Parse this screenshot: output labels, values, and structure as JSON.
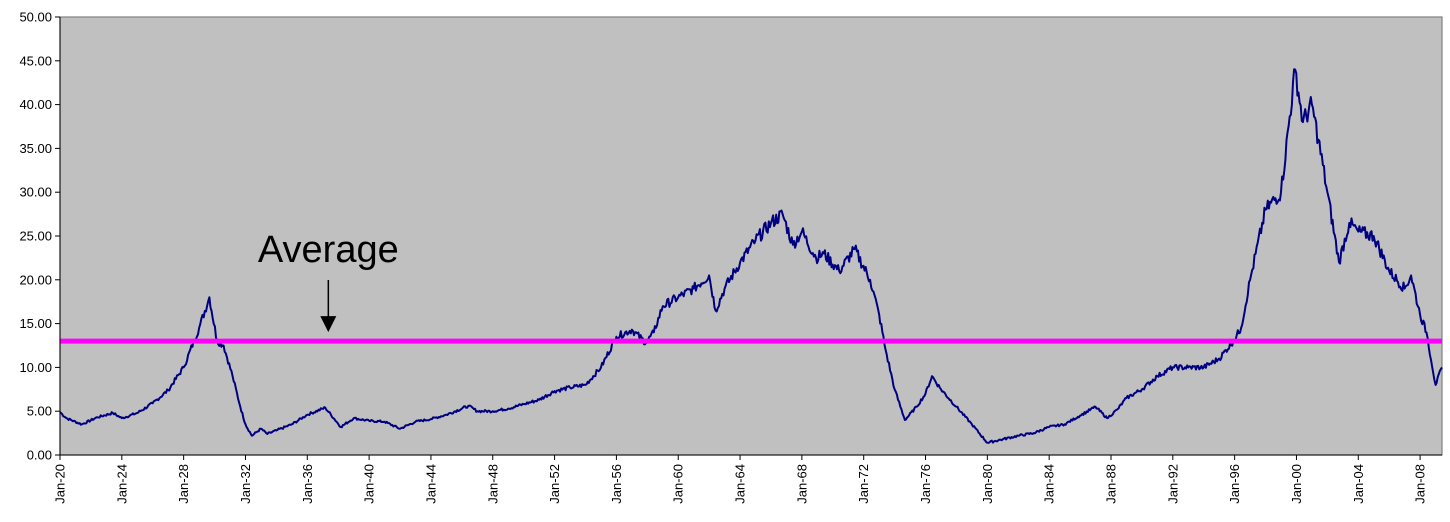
{
  "chart_data": {
    "type": "line",
    "title": "",
    "xlabel": "",
    "ylabel": "",
    "ylim": [
      0,
      50
    ],
    "yticks": [
      "0.00",
      "5.00",
      "10.00",
      "15.00",
      "20.00",
      "25.00",
      "30.00",
      "35.00",
      "40.00",
      "45.00",
      "50.00"
    ],
    "xticks": [
      "Jan-20",
      "Jan-24",
      "Jan-28",
      "Jan-32",
      "Jan-36",
      "Jan-40",
      "Jan-44",
      "Jan-48",
      "Jan-52",
      "Jan-56",
      "Jan-60",
      "Jan-64",
      "Jan-68",
      "Jan-72",
      "Jan-76",
      "Jan-80",
      "Jan-84",
      "Jan-88",
      "Jan-92",
      "Jan-96",
      "Jan-00",
      "Jan-04",
      "Jan-08"
    ],
    "xlim": [
      "1920-01",
      "2009-06"
    ],
    "grid": false,
    "legend": "none",
    "plot_background": "#c0c0c0",
    "series": [
      {
        "color": "#000080",
        "x": [
          "1920-01",
          "1920-06",
          "1921-06",
          "1922-06",
          "1923-06",
          "1924-01",
          "1925-01",
          "1926-01",
          "1927-01",
          "1928-01",
          "1929-01",
          "1929-09",
          "1930-03",
          "1930-08",
          "1931-03",
          "1931-09",
          "1932-01",
          "1932-06",
          "1933-01",
          "1933-06",
          "1934-01",
          "1935-01",
          "1936-01",
          "1937-03",
          "1938-03",
          "1939-01",
          "1940-01",
          "1941-01",
          "1942-01",
          "1943-01",
          "1944-01",
          "1945-01",
          "1946-06",
          "1947-01",
          "1948-01",
          "1949-01",
          "1950-01",
          "1951-01",
          "1952-01",
          "1953-01",
          "1954-01",
          "1955-01",
          "1956-01",
          "1957-01",
          "1957-12",
          "1958-06",
          "1959-01",
          "1960-01",
          "1961-01",
          "1962-01",
          "1962-06",
          "1963-01",
          "1964-01",
          "1965-01",
          "1966-01",
          "1966-10",
          "1967-06",
          "1968-01",
          "1968-12",
          "1969-06",
          "1970-06",
          "1971-06",
          "1972-06",
          "1973-01",
          "1973-06",
          "1974-01",
          "1974-09",
          "1975-06",
          "1976-01",
          "1976-06",
          "1977-01",
          "1978-01",
          "1979-01",
          "1980-01",
          "1981-01",
          "1982-01",
          "1983-01",
          "1984-01",
          "1985-01",
          "1986-01",
          "1987-01",
          "1987-10",
          "1988-06",
          "1989-01",
          "1990-01",
          "1991-01",
          "1992-01",
          "1993-01",
          "1994-01",
          "1995-01",
          "1995-12",
          "1996-06",
          "1997-01",
          "1998-01",
          "1999-01",
          "1999-12",
          "2000-06",
          "2001-01",
          "2001-06",
          "2002-01",
          "2002-10",
          "2003-06",
          "2004-01",
          "2005-01",
          "2006-01",
          "2007-01",
          "2007-06",
          "2008-01",
          "2008-06",
          "2009-01",
          "2009-06"
        ],
        "values": [
          4.9,
          4.2,
          3.5,
          4.3,
          4.8,
          4.2,
          4.8,
          5.9,
          7.4,
          10.0,
          14.5,
          18.0,
          13.0,
          12.5,
          9.0,
          5.5,
          3.5,
          2.2,
          3.0,
          2.4,
          2.8,
          3.5,
          4.6,
          5.4,
          3.2,
          4.2,
          3.9,
          3.8,
          3.0,
          3.8,
          4.1,
          4.6,
          5.6,
          5.0,
          5.0,
          5.3,
          5.8,
          6.3,
          7.3,
          7.7,
          8.0,
          10.0,
          13.5,
          14.3,
          12.8,
          14.0,
          17.0,
          18.0,
          19.0,
          20.5,
          16.5,
          19.0,
          22.0,
          24.5,
          26.5,
          27.5,
          24.0,
          25.5,
          22.5,
          23.0,
          21.0,
          23.5,
          20.0,
          16.0,
          12.0,
          7.5,
          4.0,
          5.5,
          7.0,
          9.0,
          7.5,
          5.5,
          3.5,
          1.4,
          1.8,
          2.2,
          2.5,
          3.2,
          3.5,
          4.5,
          5.5,
          4.2,
          5.2,
          6.5,
          7.5,
          9.0,
          10.0,
          10.0,
          10.0,
          11.0,
          13.0,
          14.5,
          20.0,
          28.0,
          30.0,
          44.0,
          38.0,
          40.0,
          36.0,
          30.0,
          22.0,
          26.5,
          25.5,
          25.0,
          21.0,
          19.0,
          20.5,
          16.0,
          14.0,
          8.0,
          10.0
        ]
      }
    ],
    "reference_line": {
      "value": 13.0,
      "color": "#ff00ff"
    },
    "annotations": [
      {
        "text": "Average",
        "x": "1937-03",
        "arrow_to": 13.0
      }
    ]
  }
}
